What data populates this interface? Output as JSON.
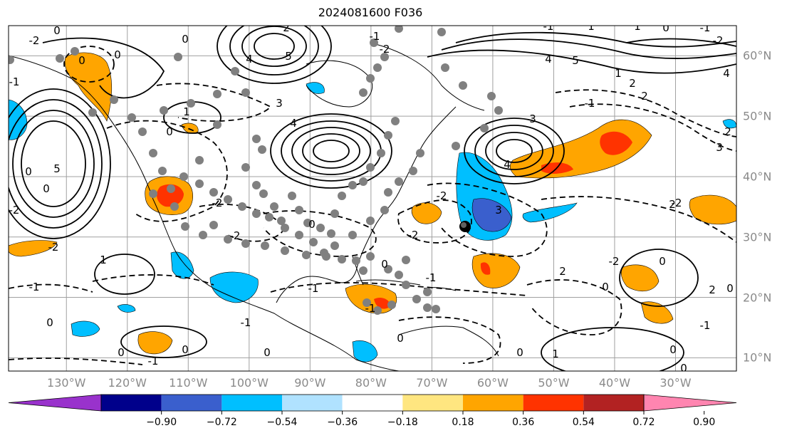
{
  "title": "2024081600 F036",
  "lon_ticks": [
    {
      "label": "130°W",
      "lon": -130
    },
    {
      "label": "120°W",
      "lon": -120
    },
    {
      "label": "110°W",
      "lon": -110
    },
    {
      "label": "100°W",
      "lon": -100
    },
    {
      "label": "90°W",
      "lon": -90
    },
    {
      "label": "80°W",
      "lon": -80
    },
    {
      "label": "70°W",
      "lon": -70
    },
    {
      "label": "60°W",
      "lon": -60
    },
    {
      "label": "50°W",
      "lon": -50
    },
    {
      "label": "40°W",
      "lon": -40
    },
    {
      "label": "30°W",
      "lon": -30
    }
  ],
  "lat_ticks": [
    {
      "label": "60°N",
      "lat": 60
    },
    {
      "label": "50°N",
      "lat": 50
    },
    {
      "label": "40°N",
      "lat": 40
    },
    {
      "label": "30°N",
      "lat": 30
    },
    {
      "label": "20°N",
      "lat": 20
    },
    {
      "label": "10°N",
      "lat": 10
    }
  ],
  "colorbar": {
    "ticks": [
      "−0.90",
      "−0.72",
      "−0.54",
      "−0.36",
      "−0.18",
      "0.18",
      "0.36",
      "0.54",
      "0.72",
      "0.90"
    ],
    "colors": [
      "#9932cc",
      "#00008b",
      "#3a5fcd",
      "#00bfff",
      "#b0e2ff",
      "#ffffff",
      "#ffe680",
      "#ffa500",
      "#ff3300",
      "#b22222",
      "#ff85b0"
    ]
  },
  "contour_labels": [
    "-2",
    "-1",
    "0",
    "1",
    "2",
    "3",
    "4",
    "5"
  ],
  "colors": {
    "grid": "#a0a0a0",
    "contour": "#000000",
    "tick_text": "#8a8a8a",
    "dot": "#808080"
  }
}
